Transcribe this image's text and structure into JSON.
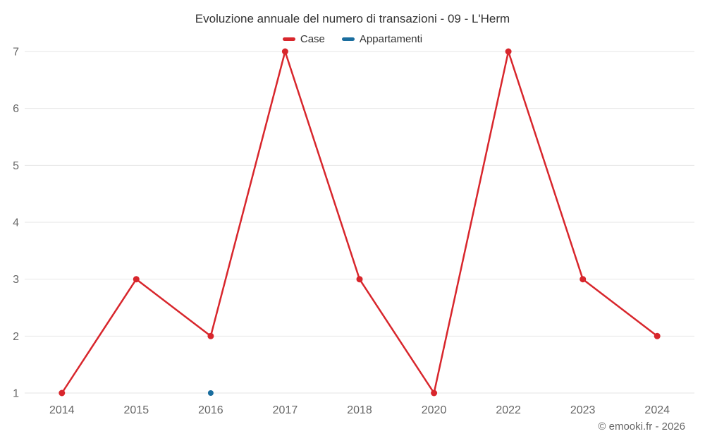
{
  "chart_data": {
    "type": "line",
    "title": "Evoluzione annuale del numero di transazioni - 09 - L'Herm",
    "categories": [
      "2014",
      "2015",
      "2016",
      "2017",
      "2018",
      "2020",
      "2022",
      "2023",
      "2024"
    ],
    "series": [
      {
        "name": "Case",
        "color": "#d8262c",
        "marker_radius": 4.5,
        "values": [
          1,
          3,
          2,
          7,
          3,
          1,
          7,
          3,
          2
        ]
      },
      {
        "name": "Appartamenti",
        "color": "#1a6d9e",
        "marker_radius": 4,
        "values": [
          null,
          null,
          1,
          null,
          null,
          null,
          null,
          null,
          null
        ]
      }
    ],
    "ylim": [
      1,
      7
    ],
    "yticks": [
      1,
      2,
      3,
      4,
      5,
      6,
      7
    ],
    "grid": "horizontal-gridlines",
    "gridline_color": "#e6e6e6",
    "axis_label_color": "#666666",
    "legend_position": "top",
    "xlabel": "",
    "ylabel": ""
  },
  "footer": {
    "attribution": "© emooki.fr - 2026"
  }
}
